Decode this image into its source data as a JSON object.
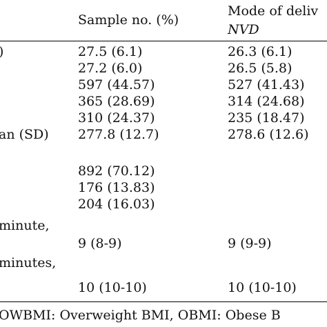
{
  "header": {
    "col_sample": "Sample no. (%)",
    "col_mode": "Mode of deliv",
    "col_mode_sub": "NVD"
  },
  "rows": [
    {
      "label": ")",
      "sample": "27.5 (6.1)",
      "nvd": "26.3 (6.1)"
    },
    {
      "label": "",
      "sample": "27.2 (6.0)",
      "nvd": "26.5 (5.8)"
    },
    {
      "label": "",
      "sample": "597 (44.57)",
      "nvd": "527 (41.43)"
    },
    {
      "label": "",
      "sample": "365 (28.69)",
      "nvd": "314 (24.68)"
    },
    {
      "label": "",
      "sample": "310 (24.37)",
      "nvd": "235 (18.47)"
    },
    {
      "label": "an (SD)",
      "sample": "277.8 (12.7)",
      "nvd": "278.6 (12.6)"
    },
    {
      "label": "",
      "sample": "892 (70.12)",
      "nvd": ""
    },
    {
      "label": "",
      "sample": "176 (13.83)",
      "nvd": ""
    },
    {
      "label": "",
      "sample": "204 (16.03)",
      "nvd": ""
    },
    {
      "label": "minute,",
      "sample": "9 (8-9)",
      "nvd": "9 (9-9)"
    },
    {
      "label": "minutes,",
      "sample": "10 (10-10)",
      "nvd": "10 (10-10)"
    }
  ],
  "footnote": "OWBMI: Overweight BMI, OBMI: Obese B"
}
